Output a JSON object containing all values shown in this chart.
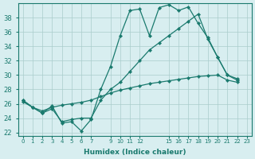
{
  "bg_color": "#d8eef0",
  "grid_color": "#aacccc",
  "line_color": "#1a7a6e",
  "xlabel": "Humidex (Indice chaleur)",
  "xlim": [
    -0.5,
    23.5
  ],
  "ylim": [
    21.5,
    40.0
  ],
  "yticks": [
    22,
    24,
    26,
    28,
    30,
    32,
    34,
    36,
    38
  ],
  "xticks": [
    0,
    1,
    2,
    3,
    4,
    5,
    6,
    7,
    9,
    10,
    11,
    12,
    15,
    16,
    17,
    18,
    19,
    20,
    21,
    22,
    23
  ],
  "xtick_labels": [
    "0",
    "1",
    "2",
    "3",
    "4",
    "5",
    "6",
    "7",
    "9",
    "10",
    "11",
    "12",
    "15",
    "16",
    "17",
    "18",
    "19",
    "20",
    "21",
    "22",
    "23"
  ],
  "series": [
    [
      26.5,
      25.5,
      24.7,
      25.7,
      23.3,
      23.5,
      22.2,
      23.8,
      28.0,
      31.2,
      35.5,
      39.0,
      39.2,
      35.5,
      39.4,
      39.8,
      39.0,
      39.5,
      37.2,
      35.2,
      32.5,
      30.0,
      29.5
    ],
    [
      26.5,
      25.5,
      24.7,
      25.3,
      23.5,
      23.8,
      24.0,
      24.0,
      26.5,
      28.0,
      29.0,
      30.5,
      32.0,
      33.5,
      34.5,
      35.5,
      36.5,
      37.5,
      38.5,
      35.0,
      32.5,
      30.0,
      29.3
    ],
    [
      26.3,
      25.5,
      25.0,
      25.5,
      25.8,
      26.0,
      26.2,
      26.5,
      27.0,
      27.5,
      27.9,
      28.2,
      28.5,
      28.8,
      29.0,
      29.2,
      29.4,
      29.6,
      29.8,
      29.9,
      30.0,
      29.3,
      29.0
    ]
  ]
}
